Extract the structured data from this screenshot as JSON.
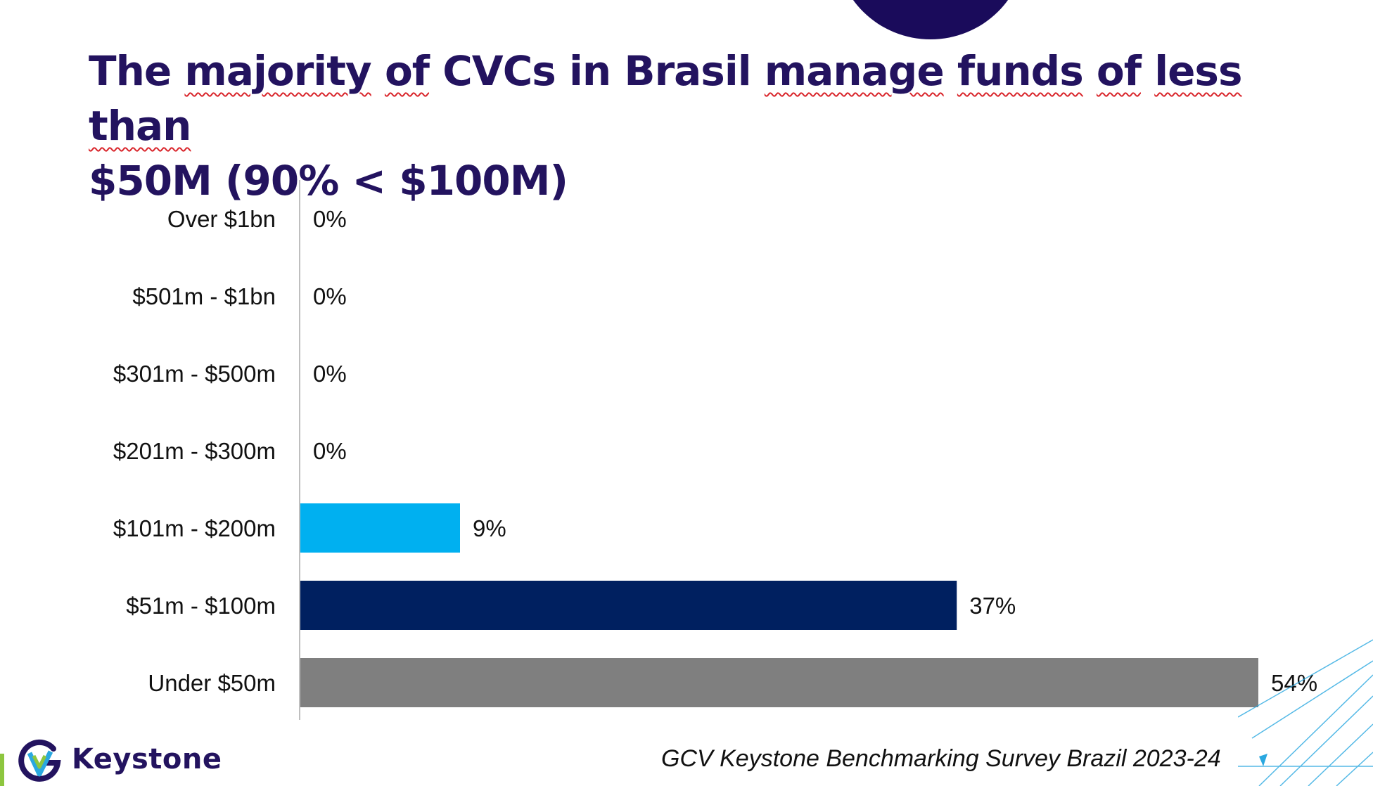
{
  "title": {
    "line1_words": [
      "The",
      "majority",
      "of",
      "CVCs",
      "in",
      "Brasil",
      "manage",
      "funds",
      "of",
      "less",
      "than"
    ],
    "line2": "$50M (90% < $100M)"
  },
  "chart_data": {
    "type": "bar",
    "orientation": "horizontal",
    "categories": [
      "Over $1bn",
      "$501m - $1bn",
      "$301m - $500m",
      "$201m - $300m",
      "$101m - $200m",
      "$51m - $100m",
      "Under $50m"
    ],
    "values": [
      0,
      0,
      0,
      0,
      9,
      37,
      54
    ],
    "value_labels": [
      "0%",
      "0%",
      "0%",
      "0%",
      "9%",
      "37%",
      "54%"
    ],
    "colors": [
      "#00b0f0",
      "#00b0f0",
      "#00b0f0",
      "#00b0f0",
      "#00b0f0",
      "#002060",
      "#7f7f7f"
    ],
    "title": "",
    "xlabel": "",
    "ylabel": "",
    "xlim": [
      0,
      54
    ],
    "grid": false,
    "legend": "none"
  },
  "footer": {
    "logo_text": "Keystone",
    "source": "GCV Keystone Benchmarking Survey Brazil 2023-24"
  },
  "colors": {
    "title": "#23135f",
    "accent_circle": "#1a0b5b",
    "spellcheck_underline": "#d9252b",
    "logo_green": "#8dc63f",
    "decor_blue": "#2aa8e0"
  },
  "icons": [
    "keystone-logo-icon"
  ]
}
